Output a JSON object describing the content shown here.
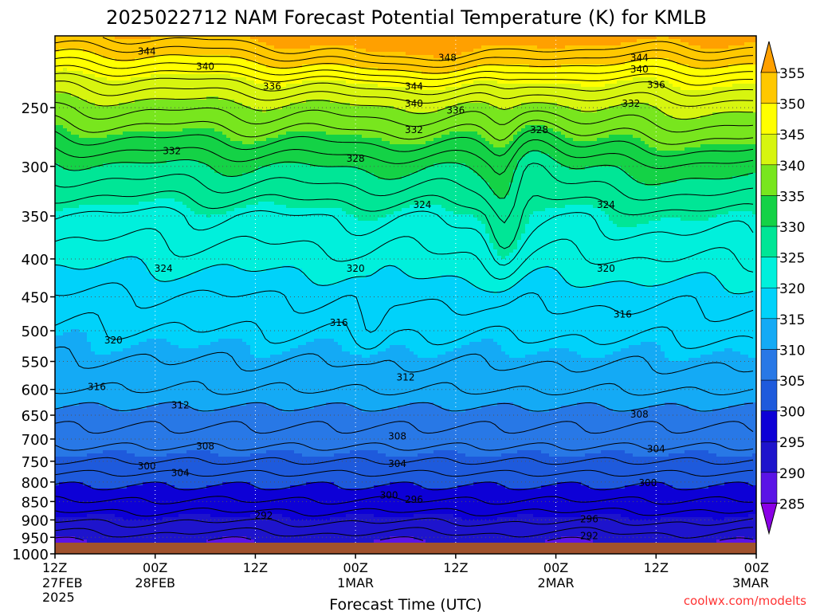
{
  "chart_data": {
    "type": "heatmap",
    "title": "2025022712 NAM Forecast Potential Temperature (K) for KMLB",
    "xlabel": "Forecast Time (UTC)",
    "ylabel": "",
    "y_scale": "log-pressure",
    "ylim": [
      1000,
      200
    ],
    "y_ticks": [
      250,
      300,
      350,
      400,
      450,
      500,
      550,
      600,
      650,
      700,
      750,
      800,
      850,
      900,
      950,
      1000
    ],
    "x_ticks": [
      {
        "time": "2025-02-27 12Z",
        "label": "12Z",
        "date": "27FEB",
        "year": "2025"
      },
      {
        "time": "2025-02-28 00Z",
        "label": "00Z",
        "date": "28FEB"
      },
      {
        "time": "2025-02-28 12Z",
        "label": "12Z"
      },
      {
        "time": "2025-03-01 00Z",
        "label": "00Z",
        "date": "1MAR"
      },
      {
        "time": "2025-03-01 12Z",
        "label": "12Z"
      },
      {
        "time": "2025-03-02 00Z",
        "label": "00Z",
        "date": "2MAR"
      },
      {
        "time": "2025-03-02 12Z",
        "label": "12Z"
      },
      {
        "time": "2025-03-03 00Z",
        "label": "00Z",
        "date": "3MAR"
      }
    ],
    "grid": true,
    "colorbar": {
      "unit": "K",
      "levels": [
        285,
        290,
        295,
        300,
        305,
        310,
        315,
        320,
        325,
        330,
        335,
        340,
        345,
        350,
        355
      ],
      "colors": [
        "#8a00e6",
        "#5a14e6",
        "#1e14cc",
        "#0d00d6",
        "#1e5adc",
        "#2878e6",
        "#14aaf5",
        "#00d2fa",
        "#00f0dc",
        "#00e696",
        "#14d246",
        "#78e61e",
        "#d7f50f",
        "#ffff00",
        "#ffc800",
        "#ffa000"
      ],
      "range": [
        280,
        360
      ]
    },
    "contour_labels": [
      {
        "time": "2025-02-27 23Z",
        "p": 210,
        "value": "344"
      },
      {
        "time": "2025-02-28 06Z",
        "p": 220,
        "value": "340"
      },
      {
        "time": "2025-02-28 14Z",
        "p": 234,
        "value": "336"
      },
      {
        "time": "2025-02-28 02Z",
        "p": 286,
        "value": "332"
      },
      {
        "time": "2025-03-01 00Z",
        "p": 293,
        "value": "328"
      },
      {
        "time": "2025-03-01 11Z",
        "p": 214,
        "value": "348"
      },
      {
        "time": "2025-03-01 07Z",
        "p": 234,
        "value": "344"
      },
      {
        "time": "2025-03-01 07Z",
        "p": 247,
        "value": "340"
      },
      {
        "time": "2025-03-01 12Z",
        "p": 252,
        "value": "336"
      },
      {
        "time": "2025-03-01 07Z",
        "p": 268,
        "value": "332"
      },
      {
        "time": "2025-03-01 22Z",
        "p": 268,
        "value": "328"
      },
      {
        "time": "2025-03-01 08Z",
        "p": 338,
        "value": "324"
      },
      {
        "time": "2025-03-02 10Z",
        "p": 214,
        "value": "344"
      },
      {
        "time": "2025-03-02 10Z",
        "p": 222,
        "value": "340"
      },
      {
        "time": "2025-03-02 12Z",
        "p": 233,
        "value": "336"
      },
      {
        "time": "2025-03-02 09Z",
        "p": 247,
        "value": "332"
      },
      {
        "time": "2025-03-02 06Z",
        "p": 338,
        "value": "324"
      },
      {
        "time": "2025-02-28 01Z",
        "p": 412,
        "value": "324"
      },
      {
        "time": "2025-03-01 00Z",
        "p": 412,
        "value": "320"
      },
      {
        "time": "2025-03-02 06Z",
        "p": 412,
        "value": "320"
      },
      {
        "time": "2025-02-27 19Z",
        "p": 515,
        "value": "320"
      },
      {
        "time": "2025-02-28 22Z",
        "p": 488,
        "value": "316"
      },
      {
        "time": "2025-03-02 08Z",
        "p": 475,
        "value": "316"
      },
      {
        "time": "2025-02-27 17Z",
        "p": 595,
        "value": "316"
      },
      {
        "time": "2025-03-01 06Z",
        "p": 578,
        "value": "312"
      },
      {
        "time": "2025-02-28 03Z",
        "p": 630,
        "value": "312"
      },
      {
        "time": "2025-03-02 10Z",
        "p": 648,
        "value": "308"
      },
      {
        "time": "2025-03-01 05Z",
        "p": 694,
        "value": "308"
      },
      {
        "time": "2025-02-28 06Z",
        "p": 716,
        "value": "308"
      },
      {
        "time": "2025-03-02 12Z",
        "p": 722,
        "value": "304"
      },
      {
        "time": "2025-03-01 05Z",
        "p": 756,
        "value": "304"
      },
      {
        "time": "2025-02-28 03Z",
        "p": 778,
        "value": "304"
      },
      {
        "time": "2025-02-27 23Z",
        "p": 762,
        "value": "300"
      },
      {
        "time": "2025-03-02 11Z",
        "p": 802,
        "value": "300"
      },
      {
        "time": "2025-03-01 04Z",
        "p": 834,
        "value": "300"
      },
      {
        "time": "2025-03-01 07Z",
        "p": 845,
        "value": "296"
      },
      {
        "time": "2025-03-02 04Z",
        "p": 898,
        "value": "296"
      },
      {
        "time": "2025-02-28 13Z",
        "p": 888,
        "value": "292"
      },
      {
        "time": "2025-03-02 04Z",
        "p": 946,
        "value": "292"
      }
    ]
  },
  "credit": "coolwx.com/modelts"
}
